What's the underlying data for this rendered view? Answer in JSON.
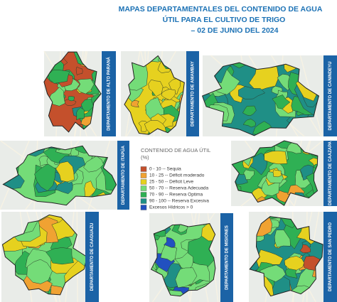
{
  "header": {
    "title_lines": [
      "MAPAS DEPARTAMENTALES DEL CONTENIDO DE AGUA",
      "ÚTIL PARA EL CULTIVO DE TRIGO",
      "– 02 DE JUNIO DEL 2024"
    ]
  },
  "legend": {
    "title": "CONTENIDO DE AGUA ÚTIL",
    "unit": "(%)",
    "items": [
      {
        "label": "0 - 10 -- Sequia",
        "color": "#c4502c"
      },
      {
        "label": "10 - 25 -- Déficit moderado",
        "color": "#f0a232"
      },
      {
        "label": "25 - 50 -- Déficit Leve",
        "color": "#e6d11f"
      },
      {
        "label": "50 - 70 -- Reserva Adecuada",
        "color": "#74dc78"
      },
      {
        "label": "70 - 90 -- Reserva Optima",
        "color": "#2fb054"
      },
      {
        "label": "90 - 100 -- Reserva Excesiva",
        "color": "#1f8f86"
      },
      {
        "label": "Excesos Hídricos > 0",
        "color": "#2250c0"
      }
    ]
  },
  "panels": [
    {
      "label": "DEPARTAMENTO DE ALTO PARANÁ"
    },
    {
      "label": "DEPARTAMENTO DE AMAMBAY"
    },
    {
      "label": "DEPARTAMENTO DE CANINDEYU"
    },
    {
      "label": "DEPARTAMENTO DE ITAPÚA"
    },
    {
      "label": "DEPARTAMENTO DE CAAZAPA"
    },
    {
      "label": "DEPARTAMENTO DE CAAGUAZU"
    },
    {
      "label": "DEPARTAMENTO DE MISIONES"
    },
    {
      "label": "DEPARTAMENTO DE SAN PEDRO"
    }
  ]
}
